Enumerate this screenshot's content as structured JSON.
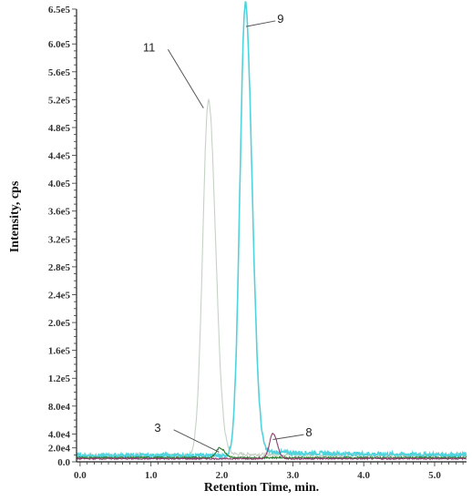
{
  "chart_data": {
    "type": "line",
    "xlabel": "Retention Time, min.",
    "ylabel": "Intensity, cps",
    "xlim": [
      -0.05,
      5.45
    ],
    "ylim": [
      0,
      650000
    ],
    "x_ticks": [
      "0.0",
      "1.0",
      "2.0",
      "3.0",
      "4.0",
      "5.0"
    ],
    "x_tick_values": [
      0,
      1,
      2,
      3,
      4,
      5
    ],
    "y_ticks": [
      "6.5e5",
      "6.0e5",
      "5.6e5",
      "5.2e5",
      "4.8e5",
      "4.4e5",
      "4.0e5",
      "3.6e5",
      "3.2e5",
      "2.8e5",
      "2.4e5",
      "2.0e5",
      "1.6e5",
      "1.2e5",
      "8.0e4",
      "4.0e4",
      "2.0e4",
      "0.0"
    ],
    "y_tick_values": [
      650000,
      600000,
      560000,
      520000,
      480000,
      440000,
      400000,
      360000,
      320000,
      280000,
      240000,
      200000,
      160000,
      120000,
      80000,
      40000,
      20000,
      0
    ],
    "series": [
      {
        "name": "11",
        "color": "#c6d2c6",
        "baseline": 9000,
        "noise": 2500,
        "tail": 2500,
        "peak": {
          "x": 1.81,
          "height": 510000,
          "sigma_left": 0.08,
          "sigma_right": 0.1
        }
      },
      {
        "name": "9",
        "color": "#4fd3dc",
        "baseline": 9000,
        "noise": 3000,
        "tail": 6000,
        "peak": {
          "x": 2.33,
          "height": 645000,
          "sigma_left": 0.075,
          "sigma_right": 0.095
        }
      },
      {
        "name": "3",
        "color": "#2e7d32",
        "baseline": 6000,
        "noise": 1200,
        "tail": 0,
        "peak": {
          "x": 1.97,
          "height": 14000,
          "sigma_left": 0.05,
          "sigma_right": 0.07
        }
      },
      {
        "name": "8",
        "color": "#8e3b6b",
        "baseline": 4500,
        "noise": 1000,
        "tail": 0,
        "peak": {
          "x": 2.72,
          "height": 36000,
          "sigma_left": 0.05,
          "sigma_right": 0.06
        }
      }
    ],
    "annotations": [
      {
        "text": "11",
        "x": 1.74,
        "y": 508000,
        "label_x": 1.06,
        "label_y": 596000
      },
      {
        "text": "9",
        "x": 2.34,
        "y": 625000,
        "label_x": 2.78,
        "label_y": 637000
      },
      {
        "text": "3",
        "x": 1.96,
        "y": 14000,
        "label_x": 1.14,
        "label_y": 50000
      },
      {
        "text": "8",
        "x": 2.72,
        "y": 32000,
        "label_x": 3.18,
        "label_y": 43000
      }
    ]
  }
}
